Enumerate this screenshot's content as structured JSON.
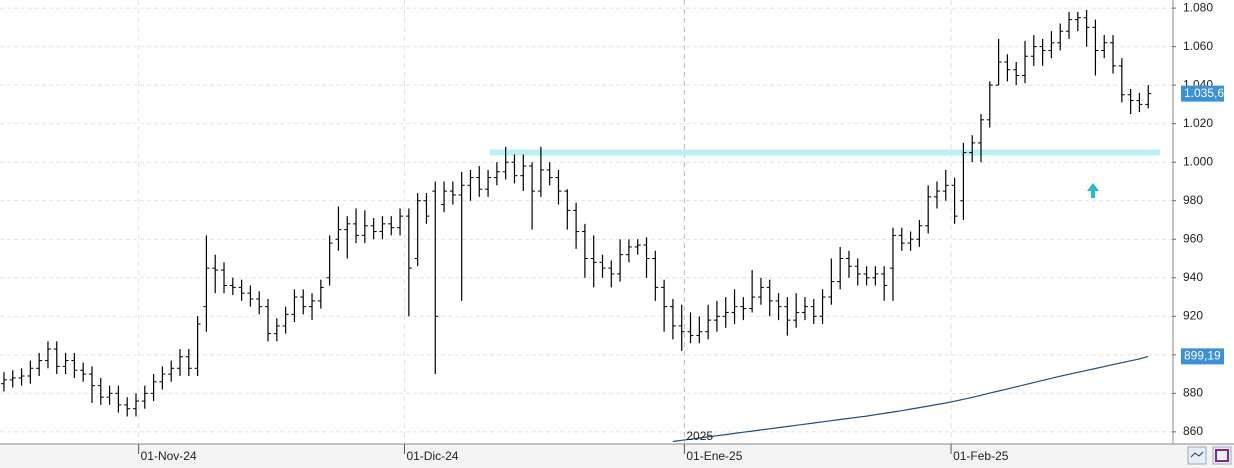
{
  "chart_data": {
    "type": "ohlc",
    "xlim": [
      -0.45,
      132.7
    ],
    "xticks": [
      {
        "value": 15.3,
        "label": "01-Nov-24"
      },
      {
        "value": 45.5,
        "label": "01-Dic-24"
      },
      {
        "value": 77.3,
        "label": "01-Ene-25"
      },
      {
        "value": 107.6,
        "label": "01-Feb-25"
      }
    ],
    "ylim": [
      853.7,
      1084.2
    ],
    "yticks": [
      860,
      880,
      900,
      920,
      940,
      960,
      980,
      {
        "value": 1000,
        "label": "1.000"
      },
      {
        "value": 1020,
        "label": "1.020"
      },
      {
        "value": 1040,
        "label": "1.040"
      },
      {
        "value": 1060,
        "label": "1.060"
      },
      {
        "value": 1080,
        "label": "1.080"
      }
    ],
    "grid": true,
    "year_label": "2025",
    "band_level": 1005,
    "band_color": "#b9f1f5",
    "open": [
      885,
      887,
      888,
      889,
      893,
      897,
      903,
      894,
      897,
      892,
      890,
      884,
      878,
      880,
      874,
      872,
      876,
      880,
      886,
      890,
      893,
      899,
      893,
      925,
      945,
      944,
      936,
      935,
      932,
      929,
      925,
      911,
      915,
      921,
      930,
      925,
      928,
      940,
      960,
      965,
      968,
      962,
      967,
      964,
      968,
      966,
      972,
      950,
      980,
      985,
      978,
      985,
      983,
      988,
      992,
      986,
      992,
      995,
      1000,
      993,
      998,
      985,
      996,
      992,
      985,
      975,
      964,
      950,
      948,
      945,
      942,
      952,
      956,
      957,
      950,
      935,
      925,
      915,
      912,
      910,
      912,
      918,
      920,
      922,
      925,
      924,
      930,
      935,
      928,
      925,
      918,
      922,
      925,
      920,
      930,
      938,
      950,
      946,
      942,
      940,
      942,
      945,
      962,
      958,
      960,
      967,
      982,
      985,
      988,
      980,
      1005,
      1010,
      1022,
      1040,
      1052,
      1048,
      1045,
      1055,
      1060,
      1058,
      1062,
      1068,
      1074,
      1075,
      1070,
      1058,
      1062,
      1050,
      1035,
      1032,
      1030
    ],
    "high": [
      891,
      892,
      893,
      897,
      901,
      907,
      907,
      901,
      901,
      896,
      894,
      888,
      884,
      884,
      878,
      880,
      884,
      890,
      894,
      897,
      903,
      903,
      920,
      962,
      952,
      948,
      940,
      939,
      936,
      933,
      929,
      919,
      925,
      934,
      934,
      932,
      939,
      962,
      977,
      972,
      976,
      975,
      971,
      972,
      972,
      976,
      976,
      984,
      984,
      990,
      990,
      990,
      995,
      996,
      998,
      996,
      1000,
      1008,
      1004,
      1004,
      1000,
      1008,
      1000,
      996,
      986,
      979,
      968,
      962,
      952,
      949,
      960,
      960,
      960,
      961,
      954,
      939,
      929,
      926,
      922,
      920,
      926,
      928,
      930,
      934,
      930,
      944,
      940,
      939,
      932,
      930,
      932,
      930,
      929,
      934,
      950,
      956,
      954,
      950,
      946,
      946,
      946,
      966,
      966,
      964,
      970,
      988,
      990,
      996,
      992,
      1010,
      1014,
      1025,
      1042,
      1064,
      1056,
      1052,
      1063,
      1066,
      1064,
      1068,
      1072,
      1078,
      1078,
      1079,
      1074,
      1066,
      1066,
      1054,
      1038,
      1036,
      1040
    ],
    "low": [
      881,
      883,
      884,
      885,
      889,
      893,
      890,
      890,
      888,
      886,
      875,
      874,
      874,
      870,
      868,
      868,
      872,
      876,
      882,
      886,
      889,
      889,
      889,
      912,
      932,
      932,
      931,
      928,
      925,
      921,
      907,
      907,
      911,
      917,
      921,
      918,
      924,
      936,
      954,
      950,
      958,
      958,
      960,
      960,
      962,
      962,
      920,
      946,
      968,
      890,
      974,
      978,
      928,
      980,
      982,
      982,
      988,
      991,
      989,
      985,
      965,
      982,
      988,
      978,
      965,
      955,
      940,
      935,
      940,
      935,
      938,
      948,
      952,
      940,
      928,
      912,
      908,
      902,
      906,
      906,
      908,
      912,
      914,
      916,
      918,
      922,
      926,
      920,
      918,
      910,
      914,
      918,
      916,
      916,
      926,
      934,
      940,
      936,
      936,
      936,
      928,
      928,
      954,
      954,
      956,
      963,
      976,
      980,
      968,
      970,
      1000,
      1000,
      1018,
      1040,
      1042,
      1040,
      1041,
      1050,
      1050,
      1054,
      1058,
      1064,
      1068,
      1060,
      1045,
      1054,
      1046,
      1031,
      1025,
      1026,
      1028
    ],
    "close": [
      887,
      888,
      889,
      893,
      897,
      903,
      894,
      897,
      892,
      890,
      884,
      878,
      880,
      874,
      872,
      876,
      880,
      886,
      890,
      893,
      899,
      893,
      916,
      945,
      944,
      936,
      935,
      932,
      929,
      925,
      911,
      915,
      921,
      930,
      925,
      928,
      935,
      958,
      965,
      968,
      962,
      967,
      964,
      968,
      966,
      972,
      945,
      980,
      972,
      920,
      985,
      983,
      988,
      992,
      986,
      992,
      995,
      1000,
      993,
      998,
      985,
      996,
      992,
      985,
      975,
      964,
      950,
      948,
      945,
      942,
      952,
      956,
      957,
      950,
      935,
      925,
      915,
      912,
      910,
      912,
      918,
      920,
      922,
      925,
      924,
      930,
      935,
      928,
      925,
      918,
      922,
      925,
      920,
      930,
      938,
      950,
      946,
      942,
      940,
      942,
      936,
      962,
      958,
      960,
      967,
      982,
      985,
      988,
      972,
      1005,
      1010,
      1022,
      1040,
      1052,
      1048,
      1045,
      1055,
      1060,
      1058,
      1062,
      1068,
      1074,
      1075,
      1070,
      1058,
      1062,
      1050,
      1035,
      1032,
      1030,
      1035.6
    ],
    "bar_color": "#000000",
    "ma": {
      "color": "#1f4e79",
      "values": [
        null,
        null,
        null,
        null,
        null,
        null,
        null,
        null,
        null,
        null,
        null,
        null,
        null,
        null,
        null,
        null,
        null,
        null,
        null,
        null,
        null,
        null,
        null,
        null,
        null,
        null,
        null,
        null,
        null,
        null,
        null,
        null,
        null,
        null,
        null,
        null,
        null,
        null,
        null,
        null,
        null,
        null,
        null,
        null,
        null,
        null,
        null,
        null,
        null,
        null,
        null,
        null,
        null,
        null,
        null,
        null,
        null,
        null,
        null,
        null,
        null,
        null,
        null,
        null,
        null,
        null,
        null,
        null,
        null,
        null,
        null,
        null,
        null,
        null,
        null,
        null,
        855.0,
        855.6,
        856.2,
        856.8,
        857.4,
        858.0,
        858.6,
        859.2,
        859.8,
        860.4,
        861.0,
        861.6,
        862.2,
        862.8,
        863.4,
        864.0,
        864.6,
        865.2,
        865.8,
        866.4,
        867.0,
        867.6,
        868.2,
        868.9,
        869.6,
        870.3,
        871.0,
        871.8,
        872.6,
        873.4,
        874.2,
        875.0,
        875.9,
        876.9,
        877.9,
        879.0,
        880.1,
        881.2,
        882.3,
        883.4,
        884.5,
        885.6,
        886.7,
        887.8,
        888.9,
        889.9,
        890.9,
        891.9,
        892.9,
        893.9,
        894.9,
        895.9,
        896.9,
        897.9,
        899.19
      ]
    },
    "last_labels": [
      {
        "value": 1035.6,
        "label": "1.035,6"
      },
      {
        "value": 899.19,
        "label": "899,19"
      }
    ],
    "last_label_color": "#3d8fd6"
  }
}
